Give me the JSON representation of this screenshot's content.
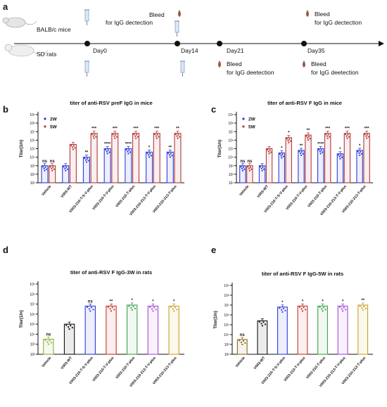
{
  "timeline": {
    "panel_label": "a",
    "groups": [
      "BALB/c mice",
      "SD rats"
    ],
    "days": [
      "Day0",
      "Day14",
      "Day21",
      "Day35"
    ],
    "bleed_line1": "Bleed",
    "bleed_line2": "for IgG dectection",
    "bleed_line2_alt": "for IgG deetection",
    "colors": {
      "line": "#111111",
      "blood": "#9b5a3c"
    }
  },
  "chart_data": [
    {
      "panel": "b",
      "type": "bar",
      "title": "titer of anti-RSV preF IgG in mice",
      "ylabel": "Titer(1/n)",
      "ylog": true,
      "ylim_exp": [
        1,
        9
      ],
      "yticks": [
        "10¹",
        "10²",
        "10³",
        "10⁴",
        "10⁵",
        "10⁶",
        "10⁷",
        "10⁸",
        "10⁹"
      ],
      "legend_position": "top-left",
      "categories": [
        "Vehicle",
        "V003-WT",
        "V003-210-T-S-V-plus",
        "V003-210-T-V-plus",
        "V003-210-T-plus",
        "V003-210-213-T-V-plus",
        "V003-210-213-T-plus"
      ],
      "series": [
        {
          "name": "2W",
          "color": "#2e3cd6",
          "values": [
            3,
            3,
            4,
            5,
            5,
            4.6,
            4.6
          ],
          "significance": [
            "ns",
            "",
            "**",
            "****",
            "****",
            "*",
            "**"
          ]
        },
        {
          "name": "5W",
          "color": "#b23a3a",
          "values": [
            3,
            5.5,
            6.8,
            6.8,
            6.8,
            6.8,
            6.8
          ],
          "significance": [
            "ns",
            "",
            "***",
            "***",
            "***",
            "***",
            "**"
          ]
        }
      ]
    },
    {
      "panel": "c",
      "type": "bar",
      "title": "titer of anti-RSV F IgG in mice",
      "ylabel": "Titer(1/n)",
      "ylog": true,
      "ylim_exp": [
        1,
        9
      ],
      "yticks": [
        "10¹",
        "10²",
        "10³",
        "10⁴",
        "10⁵",
        "10⁶",
        "10⁷",
        "10⁸",
        "10⁹"
      ],
      "legend_position": "top-left",
      "categories": [
        "Vehicle",
        "V003-WT",
        "V003-210-T-S-V-plus",
        "V003-210-T-V-plus",
        "V003-210-T-plus",
        "V003-210-213-T-V-plus",
        "V003-210-213-T-plus"
      ],
      "series": [
        {
          "name": "2W",
          "color": "#2e3cd6",
          "values": [
            3,
            3,
            4.5,
            4.8,
            5,
            4.4,
            4.8
          ],
          "significance": [
            "ns",
            "",
            "*",
            "**",
            "****",
            "*",
            "*"
          ]
        },
        {
          "name": "5W",
          "color": "#b23a3a",
          "values": [
            3,
            5,
            6.3,
            6.6,
            6.8,
            6.8,
            6.8
          ],
          "significance": [
            "ns",
            "",
            "*",
            "**",
            "***",
            "***",
            "***"
          ]
        }
      ]
    },
    {
      "panel": "d",
      "type": "bar",
      "title": "titer of anti-RSV F IgG-3W in rats",
      "ylabel": "Titer(1/n)",
      "ylog": true,
      "ylim_exp": [
        2,
        9
      ],
      "yticks": [
        "10²",
        "10³",
        "10⁴",
        "10⁵",
        "10⁶",
        "10⁷",
        "10⁸",
        "10⁹"
      ],
      "categories": [
        "Vehicle",
        "V003-WT",
        "V003-210-T-S-V-plus",
        "V003-210-T-V-plus",
        "V003-210-T-plus",
        "V003-210-213-T-V-plus",
        "V003-210-213-T-plus"
      ],
      "colors": [
        "#8fb03a",
        "#111111",
        "#2e3cd6",
        "#c0392b",
        "#3fa34d",
        "#a64ad6",
        "#c9a227"
      ],
      "values": [
        3.5,
        5,
        6.8,
        6.8,
        6.9,
        6.8,
        6.8
      ],
      "significance": [
        "ns",
        "",
        "ns",
        "**",
        "*",
        "*",
        "*"
      ]
    },
    {
      "panel": "e",
      "type": "bar",
      "title": "titer of anti-RSV F IgG-5W in rats",
      "ylabel": "Titer(1/n)",
      "ylog": true,
      "ylim_exp": [
        2,
        9
      ],
      "yticks": [
        "10²",
        "10³",
        "10⁴",
        "10⁵",
        "10⁶",
        "10⁷",
        "10⁸",
        "10⁹"
      ],
      "categories": [
        "Vehicle",
        "V003-WT",
        "V003-210-T-S-V-plus",
        "V003-210-T-V-plus",
        "V003-210-T-plus",
        "V003-210-213-T-V-plus",
        "V003-210-213-T-plus"
      ],
      "colors": [
        "#8b6a1f",
        "#111111",
        "#2e3cd6",
        "#c0392b",
        "#3fa34d",
        "#a64ad6",
        "#c9a227"
      ],
      "values": [
        3.5,
        5.4,
        6.8,
        6.9,
        6.9,
        6.9,
        7.0
      ],
      "significance": [
        "ns",
        "",
        "*",
        "*",
        "*",
        "*",
        "**"
      ]
    }
  ]
}
